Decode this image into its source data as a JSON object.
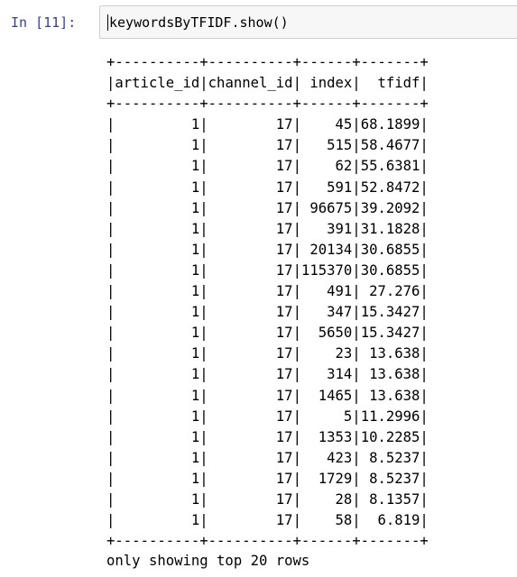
{
  "cell": {
    "prompt": "In [11]:",
    "code": "keywordsByTFIDF.show()"
  },
  "table": {
    "columns": [
      "article_id",
      "channel_id",
      "index",
      "tfidf"
    ],
    "rows": [
      [
        "1",
        "17",
        "45",
        "68.1899"
      ],
      [
        "1",
        "17",
        "515",
        "58.4677"
      ],
      [
        "1",
        "17",
        "62",
        "55.6381"
      ],
      [
        "1",
        "17",
        "591",
        "52.8472"
      ],
      [
        "1",
        "17",
        "96675",
        "39.2092"
      ],
      [
        "1",
        "17",
        "391",
        "31.1828"
      ],
      [
        "1",
        "17",
        "20134",
        "30.6855"
      ],
      [
        "1",
        "17",
        "115370",
        "30.6855"
      ],
      [
        "1",
        "17",
        "491",
        "27.276"
      ],
      [
        "1",
        "17",
        "347",
        "15.3427"
      ],
      [
        "1",
        "17",
        "5650",
        "15.3427"
      ],
      [
        "1",
        "17",
        "23",
        "13.638"
      ],
      [
        "1",
        "17",
        "314",
        "13.638"
      ],
      [
        "1",
        "17",
        "1465",
        "13.638"
      ],
      [
        "1",
        "17",
        "5",
        "11.2996"
      ],
      [
        "1",
        "17",
        "1353",
        "10.2285"
      ],
      [
        "1",
        "17",
        "423",
        "8.5237"
      ],
      [
        "1",
        "17",
        "1729",
        "8.5237"
      ],
      [
        "1",
        "17",
        "28",
        "8.1357"
      ],
      [
        "1",
        "17",
        "58",
        "6.819"
      ]
    ]
  },
  "footer": "only showing top 20 rows"
}
